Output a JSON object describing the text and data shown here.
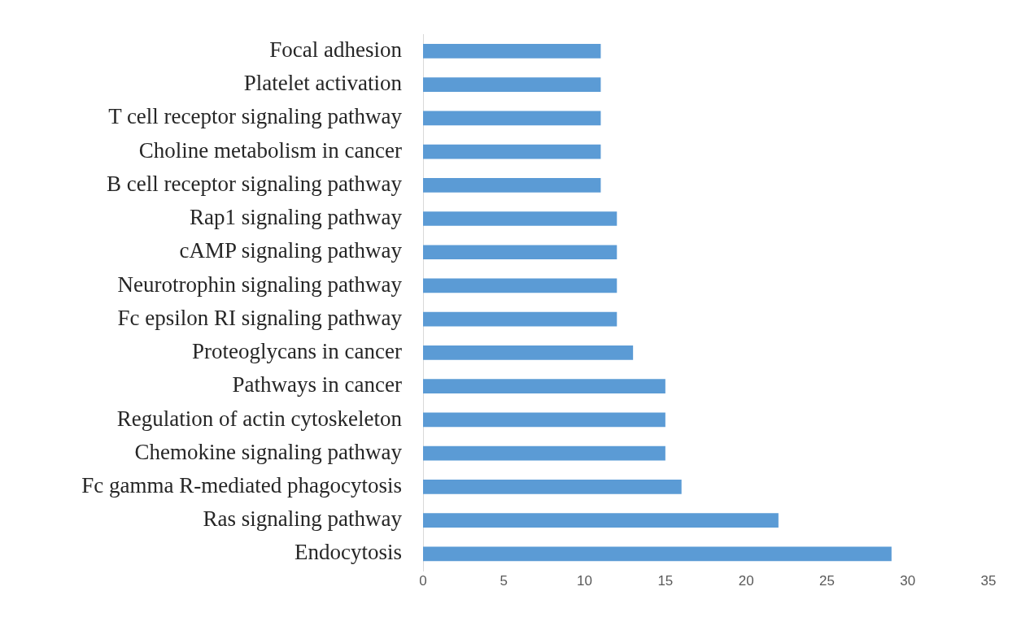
{
  "chart_data": {
    "type": "bar",
    "orientation": "horizontal",
    "categories": [
      "Focal adhesion",
      "Platelet activation",
      "T cell receptor signaling pathway",
      "Choline metabolism in cancer",
      "B cell receptor signaling pathway",
      "Rap1 signaling pathway",
      "cAMP signaling pathway",
      "Neurotrophin signaling pathway",
      "Fc epsilon RI signaling pathway",
      "Proteoglycans in cancer",
      "Pathways in cancer",
      "Regulation of actin cytoskeleton",
      "Chemokine signaling pathway",
      "Fc gamma R-mediated phagocytosis",
      "Ras signaling pathway",
      "Endocytosis"
    ],
    "values": [
      11,
      11,
      11,
      11,
      11,
      12,
      12,
      12,
      12,
      13,
      15,
      15,
      15,
      16,
      22,
      29
    ],
    "color": "#5b9bd5",
    "xlim": [
      0,
      35
    ],
    "xticks": [
      0,
      5,
      10,
      15,
      20,
      25,
      30,
      35
    ],
    "grid": false,
    "legend": false
  }
}
